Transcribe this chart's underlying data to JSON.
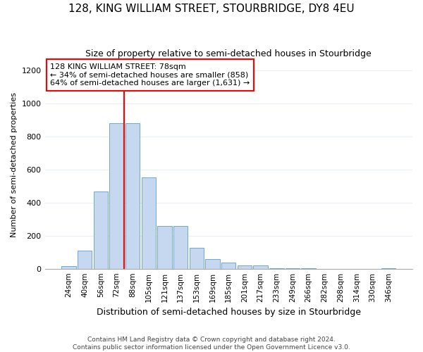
{
  "title": "128, KING WILLIAM STREET, STOURBRIDGE, DY8 4EU",
  "subtitle": "Size of property relative to semi-detached houses in Stourbridge",
  "xlabel": "Distribution of semi-detached houses by size in Stourbridge",
  "ylabel": "Number of semi-detached properties",
  "categories": [
    "24sqm",
    "40sqm",
    "56sqm",
    "72sqm",
    "88sqm",
    "105sqm",
    "121sqm",
    "137sqm",
    "153sqm",
    "169sqm",
    "185sqm",
    "201sqm",
    "217sqm",
    "233sqm",
    "249sqm",
    "266sqm",
    "282sqm",
    "298sqm",
    "314sqm",
    "330sqm",
    "346sqm"
  ],
  "values": [
    15,
    110,
    465,
    880,
    880,
    550,
    260,
    260,
    125,
    60,
    35,
    20,
    18,
    5,
    2,
    2,
    0,
    0,
    0,
    0,
    2
  ],
  "bar_color": "#c5d8f0",
  "bar_edge_color": "#6fa8d4",
  "property_label": "128 KING WILLIAM STREET: 78sqm",
  "smaller_pct": 34,
  "smaller_count": 858,
  "larger_pct": 64,
  "larger_count": 1631,
  "vline_color": "red",
  "ylim": [
    0,
    1260
  ],
  "yticks": [
    0,
    200,
    400,
    600,
    800,
    1000,
    1200
  ],
  "bg_color": "#ffffff",
  "grid_color": "#e8edf5",
  "footer1": "Contains HM Land Registry data © Crown copyright and database right 2024.",
  "footer2": "Contains public sector information licensed under the Open Government Licence v3.0."
}
